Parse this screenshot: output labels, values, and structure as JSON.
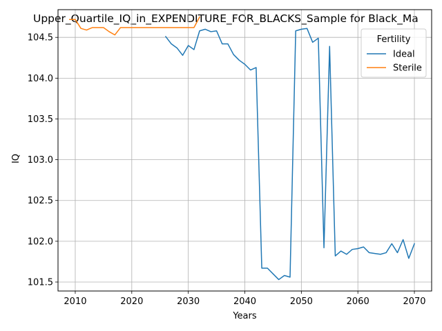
{
  "chart_data": {
    "type": "line",
    "title": "Upper_Quartile_IQ_in_EXPENDITURE_FOR_BLACKS_Sample for Black_Ma",
    "xlabel": "Years",
    "ylabel": "IQ",
    "xlim": [
      2006.95,
      2073.05
    ],
    "ylim": [
      101.39,
      104.84
    ],
    "xticks": [
      2010,
      2020,
      2030,
      2040,
      2050,
      2060,
      2070
    ],
    "yticks": [
      101.5,
      102.0,
      102.5,
      103.0,
      103.5,
      104.0,
      104.5
    ],
    "xtick_labels": [
      "2010",
      "2020",
      "2030",
      "2040",
      "2050",
      "2060",
      "2070"
    ],
    "ytick_labels": [
      "101.5",
      "102.0",
      "102.5",
      "103.0",
      "103.5",
      "104.0",
      "104.5"
    ],
    "grid": true,
    "legend": {
      "title": "Fertility",
      "placement": "top-right"
    },
    "series": [
      {
        "name": "Ideal",
        "color": "#1f77b4",
        "x": [
          2026,
          2027,
          2028,
          2029,
          2030,
          2031,
          2032,
          2033,
          2034,
          2035,
          2036,
          2037,
          2038,
          2039,
          2040,
          2041,
          2042,
          2043,
          2044,
          2045,
          2046,
          2047,
          2048,
          2049,
          2050,
          2051,
          2052,
          2053,
          2054,
          2055,
          2056,
          2057,
          2058,
          2059,
          2060,
          2061,
          2062,
          2063,
          2064,
          2065,
          2066,
          2067,
          2068,
          2069,
          2070
        ],
        "y": [
          104.51,
          104.42,
          104.37,
          104.28,
          104.4,
          104.35,
          104.58,
          104.6,
          104.57,
          104.58,
          104.42,
          104.42,
          104.29,
          104.22,
          104.17,
          104.1,
          104.13,
          101.67,
          101.67,
          101.6,
          101.53,
          101.58,
          101.56,
          104.58,
          104.6,
          104.61,
          104.44,
          104.49,
          101.92,
          104.39,
          101.82,
          101.88,
          101.84,
          101.9,
          101.91,
          101.93,
          101.86,
          101.85,
          101.84,
          101.86,
          101.97,
          101.86,
          102.02,
          101.79,
          101.97
        ]
      },
      {
        "name": "Sterile",
        "color": "#ff7f0e",
        "x": [
          2009,
          2010,
          2011,
          2012,
          2013,
          2014,
          2015,
          2016,
          2017,
          2018,
          2019,
          2020,
          2021,
          2022,
          2023,
          2024,
          2025,
          2026,
          2027,
          2028,
          2029,
          2030,
          2031,
          2032
        ],
        "y": [
          104.72,
          104.72,
          104.61,
          104.59,
          104.62,
          104.62,
          104.62,
          104.57,
          104.53,
          104.62,
          104.62,
          104.62,
          104.62,
          104.62,
          104.62,
          104.62,
          104.62,
          104.62,
          104.62,
          104.62,
          104.62,
          104.62,
          104.62,
          104.75
        ]
      }
    ]
  }
}
